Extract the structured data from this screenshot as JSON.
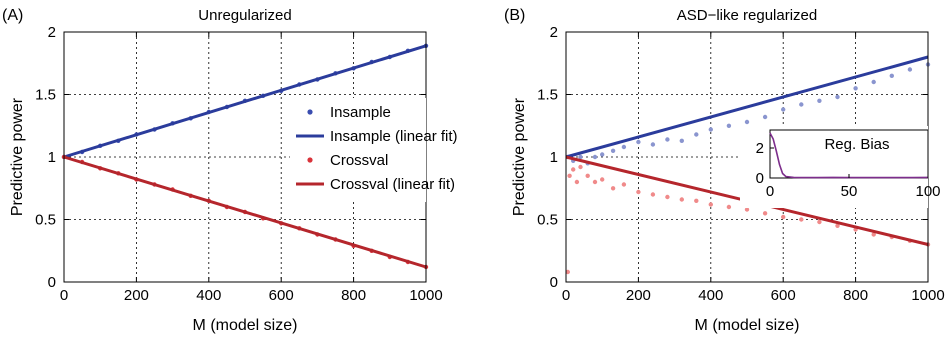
{
  "chart_data": [
    {
      "panel_label": "(A)",
      "type": "scatter",
      "title": "Unregularized",
      "xlabel": "M (model size)",
      "ylabel": "Predictive power",
      "xlim": [
        0,
        1000
      ],
      "ylim": [
        0,
        2
      ],
      "xticks": [
        0,
        200,
        400,
        600,
        800,
        1000
      ],
      "xtick_labels": [
        "0",
        "200",
        "400",
        "600",
        "800",
        "1000"
      ],
      "yticks": [
        0,
        0.5,
        1,
        1.5,
        2
      ],
      "ytick_labels": [
        "0",
        "0.5",
        "1",
        "1.5",
        "2"
      ],
      "grid": true,
      "legend_position": "right",
      "series": [
        {
          "name": "Insample",
          "kind": "points",
          "color": "#3a4db0",
          "x": [
            0,
            50,
            100,
            150,
            200,
            250,
            300,
            350,
            400,
            450,
            500,
            550,
            600,
            650,
            700,
            750,
            800,
            850,
            900,
            950,
            1000
          ],
          "y": [
            1.0,
            1.04,
            1.09,
            1.13,
            1.18,
            1.22,
            1.27,
            1.31,
            1.36,
            1.4,
            1.45,
            1.49,
            1.53,
            1.58,
            1.62,
            1.67,
            1.71,
            1.76,
            1.8,
            1.85,
            1.89
          ]
        },
        {
          "name": "Insample (linear fit)",
          "kind": "line",
          "color": "#2b3c9c",
          "x": [
            0,
            1000
          ],
          "y": [
            1.0,
            1.89
          ]
        },
        {
          "name": "Crossval",
          "kind": "points",
          "color": "#d9333a",
          "x": [
            0,
            50,
            100,
            150,
            200,
            250,
            300,
            350,
            400,
            450,
            500,
            550,
            600,
            650,
            700,
            750,
            800,
            850,
            900,
            950,
            1000
          ],
          "y": [
            1.0,
            0.96,
            0.91,
            0.87,
            0.82,
            0.78,
            0.74,
            0.69,
            0.65,
            0.6,
            0.56,
            0.51,
            0.47,
            0.43,
            0.38,
            0.34,
            0.29,
            0.25,
            0.2,
            0.16,
            0.12
          ]
        },
        {
          "name": "Crossval (linear fit)",
          "kind": "line",
          "color": "#b5262c",
          "x": [
            0,
            1000
          ],
          "y": [
            1.0,
            0.12
          ]
        }
      ]
    },
    {
      "panel_label": "(B)",
      "type": "scatter",
      "title": "ASD−like regularized",
      "xlabel": "M (model size)",
      "ylabel": "Predictive power",
      "xlim": [
        0,
        1000
      ],
      "ylim": [
        0,
        2
      ],
      "xticks": [
        0,
        200,
        400,
        600,
        800,
        1000
      ],
      "xtick_labels": [
        "0",
        "200",
        "400",
        "600",
        "800",
        "1000"
      ],
      "yticks": [
        0,
        0.5,
        1,
        1.5,
        2
      ],
      "ytick_labels": [
        "0",
        "0.5",
        "1",
        "1.5",
        "2"
      ],
      "grid": true,
      "series": [
        {
          "name": "Insample",
          "kind": "points",
          "color": "#8a95cf",
          "x": [
            5,
            20,
            40,
            60,
            80,
            100,
            130,
            160,
            200,
            240,
            280,
            320,
            360,
            400,
            450,
            500,
            550,
            600,
            650,
            700,
            750,
            800,
            850,
            900,
            950,
            1000
          ],
          "y": [
            1.0,
            0.97,
            1.0,
            0.95,
            1.0,
            1.02,
            1.05,
            1.08,
            1.12,
            1.1,
            1.14,
            1.13,
            1.18,
            1.22,
            1.25,
            1.28,
            1.32,
            1.38,
            1.42,
            1.45,
            1.48,
            1.55,
            1.6,
            1.65,
            1.7,
            1.74
          ]
        },
        {
          "name": "Insample (linear fit)",
          "kind": "line",
          "color": "#2b3c9c",
          "x": [
            0,
            1000
          ],
          "y": [
            1.0,
            1.8
          ]
        },
        {
          "name": "Crossval",
          "kind": "points",
          "color": "#f08a8a",
          "x": [
            5,
            10,
            20,
            30,
            40,
            60,
            80,
            100,
            130,
            160,
            200,
            240,
            280,
            320,
            360,
            400,
            450,
            500,
            550,
            600,
            650,
            700,
            750,
            800,
            850,
            900,
            950,
            1000
          ],
          "y": [
            0.08,
            0.85,
            0.9,
            0.8,
            0.92,
            0.85,
            0.8,
            0.82,
            0.75,
            0.78,
            0.72,
            0.7,
            0.68,
            0.66,
            0.65,
            0.62,
            0.6,
            0.58,
            0.55,
            0.52,
            0.5,
            0.48,
            0.45,
            0.42,
            0.38,
            0.36,
            0.33,
            0.3
          ]
        },
        {
          "name": "Crossval (linear fit)",
          "kind": "line",
          "color": "#b5262c",
          "x": [
            0,
            1000
          ],
          "y": [
            1.0,
            0.3
          ]
        }
      ],
      "inset": {
        "title": "Reg. Bias",
        "type": "line",
        "xlim": [
          0,
          100
        ],
        "ylim": [
          0,
          3.2
        ],
        "xticks": [
          0,
          50,
          100
        ],
        "xtick_labels": [
          "0",
          "50",
          "100"
        ],
        "yticks": [
          0,
          2
        ],
        "ytick_labels": [
          "0",
          "2"
        ],
        "color": "#7d2e8c",
        "x": [
          0,
          2,
          4,
          6,
          8,
          10,
          15,
          20,
          30,
          40,
          50,
          60,
          70,
          80,
          90,
          100
        ],
        "y": [
          3.0,
          2.6,
          1.8,
          0.9,
          0.3,
          0.1,
          0.04,
          0.03,
          0.03,
          0.04,
          0.03,
          0.03,
          0.03,
          0.03,
          0.03,
          0.04
        ]
      }
    }
  ]
}
